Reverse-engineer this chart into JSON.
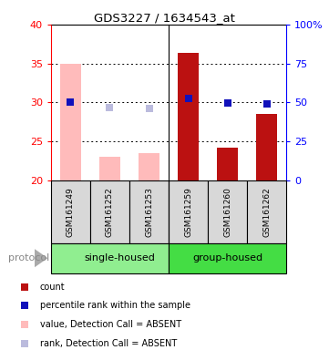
{
  "title": "GDS3227 / 1634543_at",
  "samples": [
    "GSM161249",
    "GSM161252",
    "GSM161253",
    "GSM161259",
    "GSM161260",
    "GSM161262"
  ],
  "groups": [
    "single-housed",
    "single-housed",
    "single-housed",
    "group-housed",
    "group-housed",
    "group-housed"
  ],
  "group_labels": [
    "single-housed",
    "group-housed"
  ],
  "group_split": 3,
  "bar_values": [
    35.0,
    23.0,
    23.5,
    36.3,
    24.2,
    28.5
  ],
  "bar_absent": [
    true,
    true,
    true,
    false,
    false,
    false
  ],
  "rank_values": [
    30.0,
    29.3,
    29.2,
    30.5,
    29.9,
    29.8
  ],
  "rank_absent": [
    false,
    true,
    true,
    false,
    false,
    false
  ],
  "ylim_left": [
    20,
    40
  ],
  "ylim_right": [
    0,
    100
  ],
  "yticks_left": [
    20,
    25,
    30,
    35,
    40
  ],
  "yticks_right": [
    0,
    25,
    50,
    75,
    100
  ],
  "color_present_bar": "#bb1111",
  "color_absent_bar": "#ffbbbb",
  "color_present_rank": "#1111bb",
  "color_absent_rank": "#bbbbdd",
  "bg_color": "#d8d8d8",
  "group_color_single": "#90ee90",
  "group_color_group": "#44dd44",
  "legend_items": [
    {
      "label": "count",
      "color": "#bb1111",
      "marker": "s"
    },
    {
      "label": "percentile rank within the sample",
      "color": "#1111bb",
      "marker": "s"
    },
    {
      "label": "value, Detection Call = ABSENT",
      "color": "#ffbbbb",
      "marker": "s"
    },
    {
      "label": "rank, Detection Call = ABSENT",
      "color": "#bbbbdd",
      "marker": "s"
    }
  ],
  "protocol_label": "protocol",
  "bar_width": 0.55
}
